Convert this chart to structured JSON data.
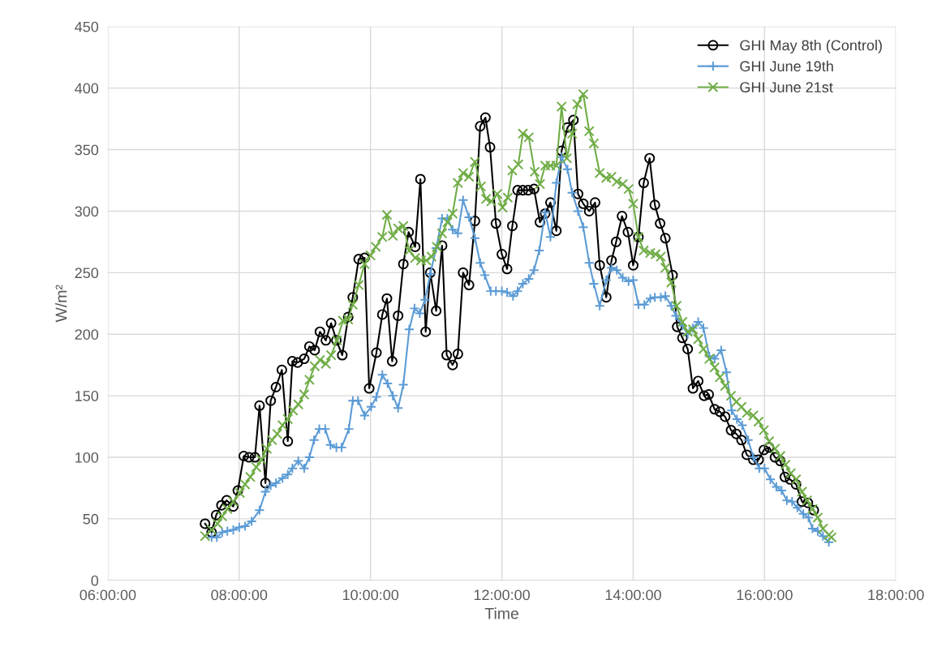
{
  "chart_data": {
    "type": "line",
    "xlabel": "Time",
    "ylabel": "W/m²",
    "xlim": [
      6,
      18
    ],
    "xticks": [
      {
        "value": 6,
        "label": "06:00:00"
      },
      {
        "value": 8,
        "label": "08:00:00"
      },
      {
        "value": 10,
        "label": "10:00:00"
      },
      {
        "value": 12,
        "label": "12:00:00"
      },
      {
        "value": 14,
        "label": "14:00:00"
      },
      {
        "value": 16,
        "label": "16:00:00"
      },
      {
        "value": 18,
        "label": "18:00:00"
      }
    ],
    "ylim": [
      0,
      450
    ],
    "yticks": [
      0,
      50,
      100,
      150,
      200,
      250,
      300,
      350,
      400,
      450
    ],
    "grid": true,
    "legend": "top right",
    "line_style": "solid",
    "series": [
      {
        "name": "GHI May 8th (Control)",
        "color": "#000000",
        "marker": "circle",
        "x": [
          7.48,
          7.58,
          7.65,
          7.73,
          7.81,
          7.91,
          7.98,
          8.07,
          8.15,
          8.24,
          8.31,
          8.4,
          8.48,
          8.56,
          8.65,
          8.74,
          8.81,
          8.89,
          8.99,
          9.07,
          9.15,
          9.23,
          9.32,
          9.4,
          9.48,
          9.57,
          9.66,
          9.73,
          9.82,
          9.91,
          9.98,
          10.09,
          10.18,
          10.25,
          10.33,
          10.42,
          10.5,
          10.58,
          10.68,
          10.76,
          10.84,
          10.91,
          11.0,
          11.09,
          11.16,
          11.25,
          11.33,
          11.41,
          11.5,
          11.59,
          11.67,
          11.75,
          11.82,
          11.91,
          12.0,
          12.08,
          12.16,
          12.24,
          12.32,
          12.4,
          12.49,
          12.58,
          12.66,
          12.74,
          12.83,
          12.91,
          13.0,
          13.09,
          13.16,
          13.24,
          13.33,
          13.42,
          13.49,
          13.59,
          13.67,
          13.74,
          13.83,
          13.92,
          14.0,
          14.08,
          14.16,
          14.25,
          14.33,
          14.41,
          14.49,
          14.6,
          14.67,
          14.75,
          14.83,
          14.91,
          14.99,
          15.08,
          15.15,
          15.24,
          15.32,
          15.4,
          15.49,
          15.57,
          15.65,
          15.73,
          15.83,
          15.91,
          15.99,
          16.07,
          16.16,
          16.24,
          16.31,
          16.39,
          16.48,
          16.57,
          16.66,
          16.75
        ],
        "values": [
          46,
          39,
          53,
          61,
          65,
          60,
          73,
          101,
          100,
          100,
          142,
          79,
          146,
          157,
          171,
          113,
          178,
          177,
          180,
          190,
          187,
          202,
          195,
          209,
          195,
          183,
          214,
          230,
          261,
          262,
          156,
          185,
          216,
          229,
          178,
          215,
          257,
          283,
          271,
          326,
          202,
          250,
          219,
          272,
          183,
          175,
          184,
          250,
          240,
          292,
          369,
          376,
          352,
          290,
          265,
          253,
          288,
          317,
          317,
          317,
          318,
          291,
          298,
          307,
          284,
          349,
          368,
          374,
          314,
          306,
          300,
          307,
          256,
          230,
          260,
          275,
          296,
          283,
          256,
          279,
          323,
          343,
          305,
          290,
          278,
          248,
          206,
          197,
          188,
          156,
          162,
          150,
          151,
          139,
          137,
          133,
          122,
          119,
          114,
          102,
          98,
          98,
          106,
          108,
          100,
          97,
          84,
          82,
          78,
          64,
          63,
          57
        ]
      },
      {
        "name": "GHI June 19th",
        "color": "#5b9bd5",
        "marker": "plus",
        "x": [
          7.58,
          7.66,
          7.74,
          7.82,
          7.91,
          8.0,
          8.09,
          8.19,
          8.31,
          8.4,
          8.48,
          8.56,
          8.66,
          8.74,
          8.81,
          8.9,
          8.99,
          9.07,
          9.14,
          9.22,
          9.31,
          9.39,
          9.48,
          9.56,
          9.67,
          9.73,
          9.81,
          9.91,
          10.01,
          10.09,
          10.18,
          10.26,
          10.34,
          10.42,
          10.5,
          10.59,
          10.67,
          10.75,
          10.83,
          10.91,
          11.0,
          11.09,
          11.17,
          11.25,
          11.33,
          11.41,
          11.5,
          11.59,
          11.67,
          11.74,
          11.83,
          11.91,
          12.0,
          12.08,
          12.17,
          12.24,
          12.32,
          12.41,
          12.49,
          12.57,
          12.66,
          12.74,
          12.83,
          12.91,
          13.0,
          13.07,
          13.16,
          13.24,
          13.33,
          13.4,
          13.49,
          13.59,
          13.67,
          13.75,
          13.84,
          13.93,
          14.0,
          14.08,
          14.17,
          14.26,
          14.33,
          14.42,
          14.49,
          14.58,
          14.65,
          14.75,
          14.83,
          14.91,
          14.99,
          15.07,
          15.16,
          15.24,
          15.34,
          15.42,
          15.5,
          15.58,
          15.66,
          15.75,
          15.83,
          15.92,
          16.0,
          16.09,
          16.18,
          16.26,
          16.34,
          16.42,
          16.5,
          16.59,
          16.67,
          16.73,
          16.81,
          16.89,
          16.98
        ],
        "values": [
          35,
          35,
          39,
          40,
          41,
          43,
          44,
          48,
          57,
          72,
          77,
          79,
          83,
          86,
          91,
          97,
          91,
          100,
          114,
          123,
          123,
          110,
          108,
          108,
          123,
          146,
          146,
          134,
          141,
          149,
          167,
          160,
          150,
          140,
          159,
          204,
          221,
          217,
          228,
          249,
          270,
          294,
          294,
          285,
          282,
          309,
          295,
          278,
          258,
          248,
          235,
          235,
          235,
          234,
          231,
          235,
          241,
          245,
          252,
          268,
          299,
          279,
          323,
          344,
          334,
          315,
          300,
          287,
          258,
          241,
          223,
          244,
          254,
          252,
          246,
          243,
          244,
          224,
          224,
          229,
          230,
          230,
          231,
          223,
          215,
          207,
          200,
          205,
          210,
          205,
          182,
          180,
          187,
          169,
          138,
          131,
          126,
          114,
          100,
          91,
          91,
          82,
          76,
          73,
          65,
          64,
          59,
          54,
          51,
          42,
          40,
          36,
          31
        ]
      },
      {
        "name": "GHI June 21st",
        "color": "#70ad47",
        "marker": "cross",
        "x": [
          7.48,
          7.58,
          7.67,
          7.74,
          7.82,
          7.91,
          8.01,
          8.09,
          8.17,
          8.26,
          8.34,
          8.42,
          8.5,
          8.58,
          8.66,
          8.74,
          8.82,
          8.9,
          8.99,
          9.07,
          9.15,
          9.23,
          9.32,
          9.4,
          9.49,
          9.58,
          9.66,
          9.73,
          9.82,
          9.91,
          10.0,
          10.08,
          10.18,
          10.25,
          10.34,
          10.42,
          10.5,
          10.59,
          10.68,
          10.77,
          10.85,
          10.93,
          11.01,
          11.09,
          11.17,
          11.25,
          11.33,
          11.41,
          11.5,
          11.59,
          11.68,
          11.76,
          11.84,
          11.93,
          12.01,
          12.09,
          12.16,
          12.25,
          12.32,
          12.41,
          12.5,
          12.58,
          12.66,
          12.74,
          12.83,
          12.91,
          12.99,
          13.07,
          13.15,
          13.24,
          13.33,
          13.4,
          13.49,
          13.59,
          13.67,
          13.75,
          13.84,
          13.93,
          14.0,
          14.08,
          14.16,
          14.26,
          14.34,
          14.42,
          14.49,
          14.58,
          14.66,
          14.75,
          14.83,
          14.91,
          14.99,
          15.07,
          15.16,
          15.24,
          15.32,
          15.4,
          15.49,
          15.57,
          15.65,
          15.73,
          15.83,
          15.91,
          15.99,
          16.07,
          16.16,
          16.24,
          16.32,
          16.4,
          16.48,
          16.57,
          16.65,
          16.73,
          16.81,
          16.89,
          16.98,
          17.02
        ],
        "values": [
          36,
          41,
          46,
          52,
          58,
          64,
          71,
          78,
          84,
          92,
          98,
          107,
          114,
          119,
          126,
          131,
          138,
          143,
          151,
          163,
          174,
          179,
          176,
          183,
          195,
          211,
          212,
          224,
          240,
          257,
          264,
          271,
          279,
          297,
          280,
          286,
          288,
          268,
          262,
          260,
          260,
          263,
          271,
          282,
          291,
          298,
          323,
          331,
          328,
          340,
          320,
          310,
          308,
          314,
          303,
          311,
          333,
          338,
          363,
          360,
          332,
          322,
          337,
          337,
          337,
          385,
          343,
          363,
          387,
          395,
          365,
          355,
          331,
          327,
          328,
          324,
          322,
          318,
          306,
          279,
          268,
          266,
          265,
          263,
          254,
          242,
          223,
          210,
          202,
          204,
          196,
          188,
          180,
          173,
          165,
          158,
          150,
          145,
          141,
          136,
          134,
          129,
          122,
          113,
          107,
          101,
          94,
          87,
          82,
          72,
          65,
          58,
          51,
          42,
          37,
          35
        ]
      }
    ]
  }
}
